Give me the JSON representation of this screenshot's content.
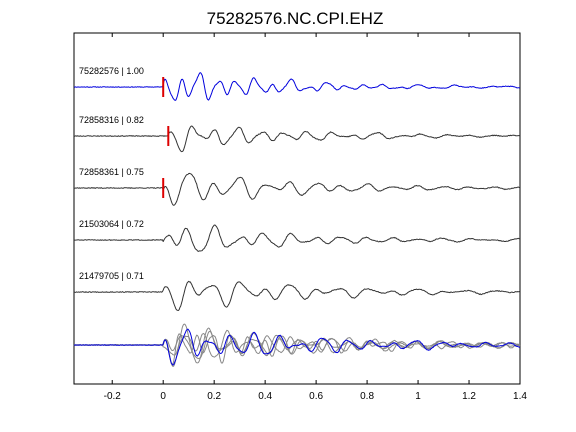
{
  "chart_data": {
    "type": "line",
    "title": "75282576.NC.CPI.EHZ",
    "xlabel": "",
    "ylabel": "",
    "xlim": [
      -0.35,
      1.4
    ],
    "xticks": [
      -0.2,
      0,
      0.2,
      0.4,
      0.6,
      0.8,
      1,
      1.2,
      1.4
    ],
    "xtick_labels": [
      "-0.2",
      "0",
      "0.2",
      "0.4",
      "0.6",
      "0.8",
      "1",
      "1.2",
      "1.4"
    ],
    "grid": false,
    "legend": "none",
    "colors": {
      "master": "#0000dd",
      "neighbor": "#333333",
      "stack": "#888888",
      "pick": "#dd0000"
    },
    "traces": [
      {
        "label": "75282576 | 1.00",
        "event_id": "75282576",
        "correlation": 1.0,
        "pick_time": 0.0,
        "color": "master"
      },
      {
        "label": "72858316 | 0.82",
        "event_id": "72858316",
        "correlation": 0.82,
        "pick_time": 0.02,
        "color": "neighbor"
      },
      {
        "label": "72858361 | 0.75",
        "event_id": "72858361",
        "correlation": 0.75,
        "pick_time": 0.0,
        "color": "neighbor"
      },
      {
        "label": "21503064 | 0.72",
        "event_id": "21503064",
        "correlation": 0.72,
        "pick_time": null,
        "color": "neighbor"
      },
      {
        "label": "21479705 | 0.71",
        "event_id": "21479705",
        "correlation": 0.71,
        "pick_time": null,
        "color": "neighbor"
      }
    ],
    "overlay": {
      "description_visible": false,
      "series_colors": [
        "stack",
        "stack",
        "stack",
        "stack",
        "master"
      ]
    }
  }
}
